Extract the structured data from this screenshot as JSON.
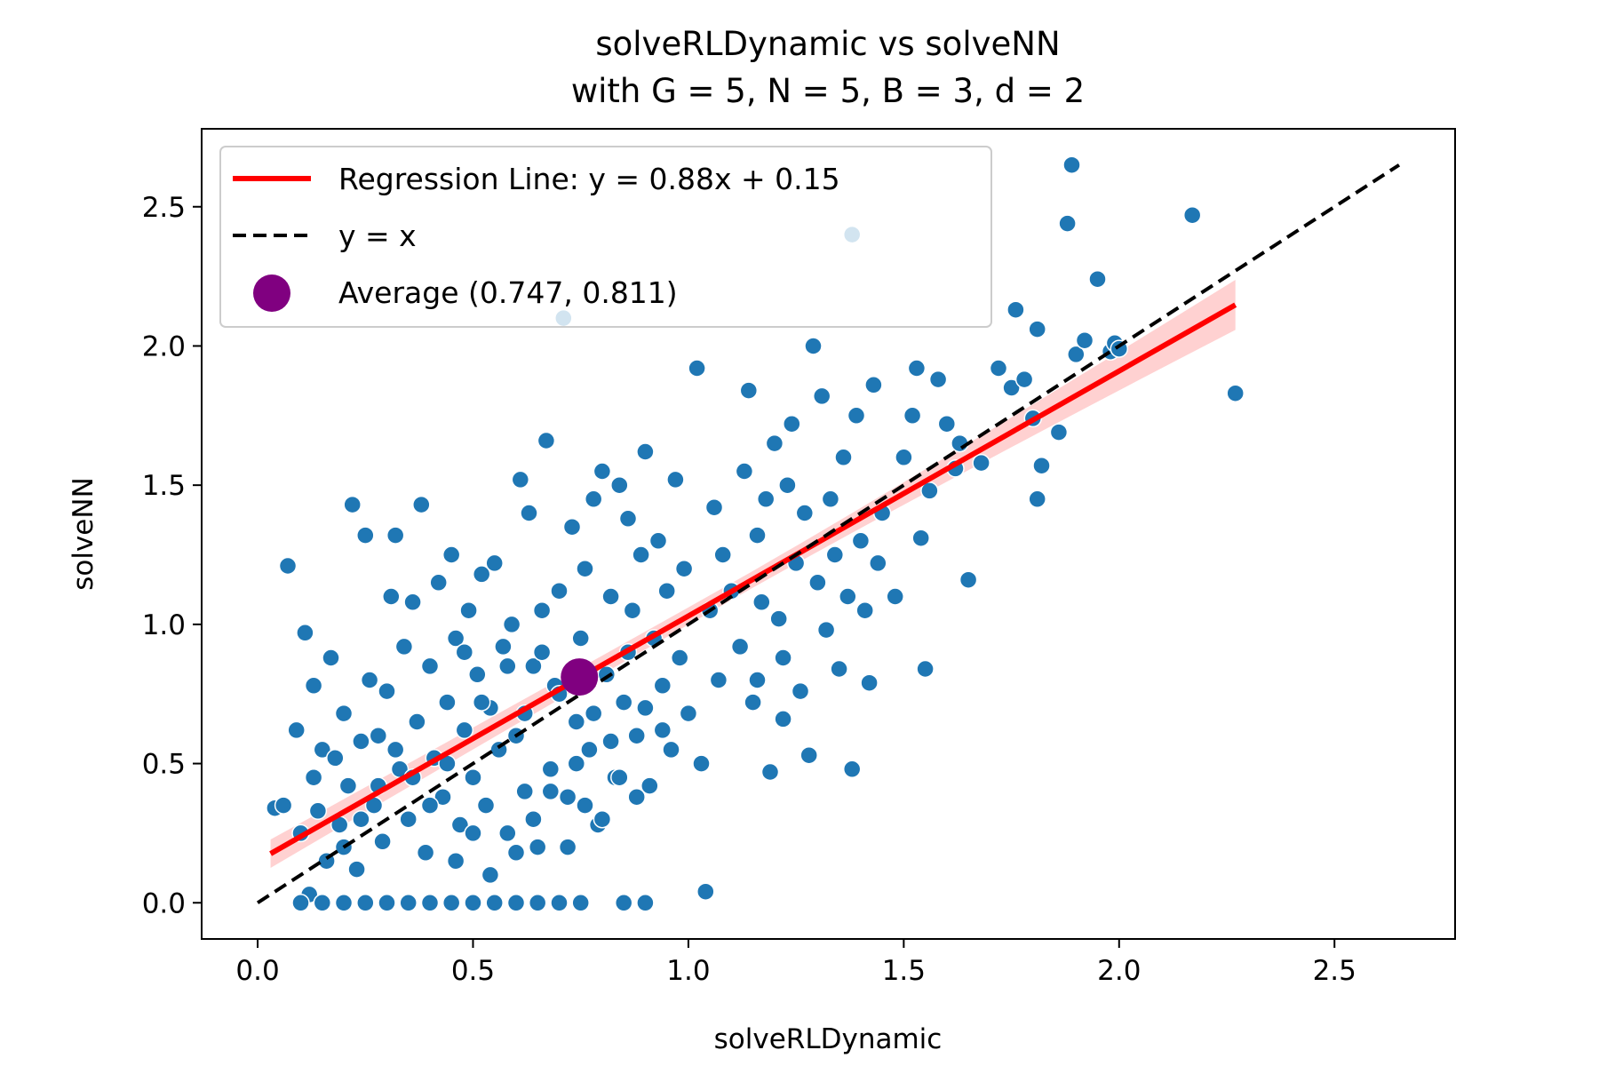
{
  "chart_data": {
    "type": "scatter",
    "title": "solveRLDynamic vs solveNN",
    "subtitle": "with G = 5, N = 5, B = 3, d = 2",
    "xlabel": "solveRLDynamic",
    "ylabel": "solveNN",
    "xlim": [
      -0.13,
      2.78
    ],
    "ylim": [
      -0.13,
      2.78
    ],
    "xticks": [
      0.0,
      0.5,
      1.0,
      1.5,
      2.0,
      2.5
    ],
    "yticks": [
      0.0,
      0.5,
      1.0,
      1.5,
      2.0,
      2.5
    ],
    "x_tick_labels": [
      "0.0",
      "0.5",
      "1.0",
      "1.5",
      "2.0",
      "2.5"
    ],
    "y_tick_labels": [
      "0.0",
      "0.5",
      "1.0",
      "1.5",
      "2.0",
      "2.5"
    ],
    "grid": false,
    "legend_position": "top-left",
    "legend": [
      {
        "label": "Regression Line: y = 0.88x + 0.15",
        "kind": "line",
        "color": "#ff0000"
      },
      {
        "label": "y = x",
        "kind": "dashed",
        "color": "#000000"
      },
      {
        "label": "Average (0.747, 0.811)",
        "kind": "marker",
        "color": "#800080"
      }
    ],
    "regression": {
      "slope": 0.88,
      "intercept": 0.15,
      "x_range": [
        0.03,
        2.27
      ],
      "ci_halfwidth": [
        0.03,
        0.09
      ],
      "color": "#ff0000"
    },
    "identity_line": {
      "x_range": [
        0.0,
        2.65
      ],
      "color": "#000000"
    },
    "average": {
      "x": 0.747,
      "y": 0.811,
      "color": "#800080"
    },
    "scatter_color": "#1f77b4",
    "points": [
      [
        0.04,
        0.34
      ],
      [
        0.06,
        0.35
      ],
      [
        0.07,
        1.21
      ],
      [
        0.09,
        0.62
      ],
      [
        0.1,
        0.25
      ],
      [
        0.11,
        0.97
      ],
      [
        0.12,
        0.03
      ],
      [
        0.13,
        0.78
      ],
      [
        0.13,
        0.45
      ],
      [
        0.14,
        0.33
      ],
      [
        0.15,
        0.55
      ],
      [
        0.16,
        0.15
      ],
      [
        0.17,
        0.88
      ],
      [
        0.18,
        0.52
      ],
      [
        0.19,
        0.28
      ],
      [
        0.2,
        0.68
      ],
      [
        0.21,
        0.42
      ],
      [
        0.22,
        1.43
      ],
      [
        0.23,
        0.12
      ],
      [
        0.24,
        0.58
      ],
      [
        0.25,
        1.32
      ],
      [
        0.26,
        0.8
      ],
      [
        0.27,
        0.35
      ],
      [
        0.28,
        0.6
      ],
      [
        0.29,
        0.22
      ],
      [
        0.3,
        0.76
      ],
      [
        0.31,
        1.1
      ],
      [
        0.32,
        1.32
      ],
      [
        0.33,
        0.48
      ],
      [
        0.34,
        0.92
      ],
      [
        0.35,
        0.3
      ],
      [
        0.36,
        1.08
      ],
      [
        0.37,
        0.65
      ],
      [
        0.38,
        1.43
      ],
      [
        0.39,
        0.18
      ],
      [
        0.4,
        0.85
      ],
      [
        0.41,
        0.52
      ],
      [
        0.42,
        1.15
      ],
      [
        0.43,
        0.38
      ],
      [
        0.44,
        0.72
      ],
      [
        0.45,
        1.25
      ],
      [
        0.46,
        0.95
      ],
      [
        0.47,
        0.28
      ],
      [
        0.48,
        0.62
      ],
      [
        0.49,
        1.05
      ],
      [
        0.5,
        0.45
      ],
      [
        0.51,
        0.82
      ],
      [
        0.52,
        1.18
      ],
      [
        0.53,
        0.35
      ],
      [
        0.54,
        0.7
      ],
      [
        0.55,
        1.22
      ],
      [
        0.56,
        0.55
      ],
      [
        0.57,
        0.92
      ],
      [
        0.58,
        0.25
      ],
      [
        0.59,
        1.0
      ],
      [
        0.6,
        0.6
      ],
      [
        0.61,
        1.52
      ],
      [
        0.62,
        0.4
      ],
      [
        0.63,
        1.4
      ],
      [
        0.64,
        0.85
      ],
      [
        0.65,
        0.2
      ],
      [
        0.66,
        1.05
      ],
      [
        0.67,
        1.66
      ],
      [
        0.68,
        0.48
      ],
      [
        0.69,
        0.78
      ],
      [
        0.7,
        1.12
      ],
      [
        0.71,
        2.1
      ],
      [
        0.72,
        0.38
      ],
      [
        0.73,
        1.35
      ],
      [
        0.74,
        0.65
      ],
      [
        0.75,
        0.95
      ],
      [
        0.76,
        1.2
      ],
      [
        0.77,
        0.55
      ],
      [
        0.78,
        1.45
      ],
      [
        0.79,
        0.28
      ],
      [
        0.8,
        1.55
      ],
      [
        0.81,
        0.82
      ],
      [
        0.82,
        1.1
      ],
      [
        0.83,
        0.45
      ],
      [
        0.84,
        1.5
      ],
      [
        0.85,
        0.72
      ],
      [
        0.86,
        1.38
      ],
      [
        0.87,
        1.05
      ],
      [
        0.88,
        0.6
      ],
      [
        0.89,
        1.25
      ],
      [
        0.9,
        1.62
      ],
      [
        0.91,
        0.42
      ],
      [
        0.92,
        0.95
      ],
      [
        0.93,
        1.3
      ],
      [
        0.94,
        0.78
      ],
      [
        0.95,
        1.12
      ],
      [
        0.96,
        0.55
      ],
      [
        0.97,
        1.52
      ],
      [
        0.98,
        0.88
      ],
      [
        0.99,
        1.2
      ],
      [
        1.0,
        0.68
      ],
      [
        1.02,
        1.92
      ],
      [
        1.03,
        0.5
      ],
      [
        1.04,
        0.04
      ],
      [
        1.05,
        1.05
      ],
      [
        1.06,
        1.42
      ],
      [
        1.07,
        0.8
      ],
      [
        1.08,
        1.25
      ],
      [
        1.1,
        1.12
      ],
      [
        1.12,
        0.92
      ],
      [
        1.13,
        1.55
      ],
      [
        1.14,
        1.84
      ],
      [
        1.15,
        0.72
      ],
      [
        1.16,
        1.32
      ],
      [
        1.17,
        1.08
      ],
      [
        1.18,
        1.45
      ],
      [
        1.19,
        0.47
      ],
      [
        1.2,
        1.65
      ],
      [
        1.21,
        1.02
      ],
      [
        1.22,
        0.88
      ],
      [
        1.23,
        1.5
      ],
      [
        1.24,
        1.72
      ],
      [
        1.25,
        1.22
      ],
      [
        1.26,
        0.76
      ],
      [
        1.27,
        1.4
      ],
      [
        1.28,
        0.53
      ],
      [
        1.29,
        2.0
      ],
      [
        1.3,
        1.15
      ],
      [
        1.31,
        1.82
      ],
      [
        1.32,
        0.98
      ],
      [
        1.33,
        1.45
      ],
      [
        1.34,
        1.25
      ],
      [
        1.35,
        0.84
      ],
      [
        1.36,
        1.6
      ],
      [
        1.37,
        1.1
      ],
      [
        1.38,
        0.48
      ],
      [
        1.39,
        1.75
      ],
      [
        1.4,
        1.3
      ],
      [
        1.41,
        1.05
      ],
      [
        1.42,
        0.79
      ],
      [
        1.43,
        1.86
      ],
      [
        1.44,
        1.22
      ],
      [
        1.45,
        1.4
      ],
      [
        1.48,
        1.1
      ],
      [
        1.5,
        1.6
      ],
      [
        1.52,
        1.75
      ],
      [
        1.53,
        1.92
      ],
      [
        1.54,
        1.31
      ],
      [
        1.55,
        0.84
      ],
      [
        1.56,
        1.48
      ],
      [
        1.58,
        1.88
      ],
      [
        1.6,
        1.72
      ],
      [
        1.62,
        1.56
      ],
      [
        1.63,
        1.65
      ],
      [
        1.65,
        1.16
      ],
      [
        1.68,
        1.58
      ],
      [
        1.72,
        1.92
      ],
      [
        1.75,
        1.85
      ],
      [
        1.76,
        2.13
      ],
      [
        1.78,
        1.88
      ],
      [
        1.8,
        1.74
      ],
      [
        1.81,
        2.06
      ],
      [
        1.81,
        1.45
      ],
      [
        1.82,
        1.57
      ],
      [
        1.86,
        1.69
      ],
      [
        1.88,
        2.44
      ],
      [
        1.89,
        2.65
      ],
      [
        1.9,
        1.97
      ],
      [
        1.92,
        2.02
      ],
      [
        1.95,
        2.24
      ],
      [
        1.98,
        1.98
      ],
      [
        1.99,
        2.01
      ],
      [
        2.0,
        1.99
      ],
      [
        2.17,
        2.47
      ],
      [
        2.27,
        1.83
      ],
      [
        1.38,
        2.4
      ],
      [
        0.25,
        0.0
      ],
      [
        0.3,
        0.0
      ],
      [
        0.35,
        0.0
      ],
      [
        0.4,
        0.0
      ],
      [
        0.45,
        0.0
      ],
      [
        0.5,
        0.0
      ],
      [
        0.55,
        0.0
      ],
      [
        0.6,
        0.0
      ],
      [
        0.65,
        0.0
      ],
      [
        0.7,
        0.0
      ],
      [
        0.75,
        0.0
      ],
      [
        0.85,
        0.0
      ],
      [
        0.9,
        0.0
      ],
      [
        0.1,
        0.0
      ],
      [
        0.15,
        0.0
      ],
      [
        0.2,
        0.0
      ],
      [
        0.56,
        0.55
      ],
      [
        0.48,
        0.9
      ],
      [
        0.52,
        0.72
      ],
      [
        0.58,
        0.85
      ],
      [
        0.62,
        0.68
      ],
      [
        0.66,
        0.9
      ],
      [
        0.7,
        0.75
      ],
      [
        0.74,
        0.5
      ],
      [
        0.78,
        0.68
      ],
      [
        0.82,
        0.58
      ],
      [
        0.86,
        0.9
      ],
      [
        0.9,
        0.7
      ],
      [
        0.94,
        0.62
      ],
      [
        0.44,
        0.5
      ],
      [
        0.4,
        0.35
      ],
      [
        0.36,
        0.45
      ],
      [
        0.32,
        0.55
      ],
      [
        0.28,
        0.42
      ],
      [
        0.24,
        0.3
      ],
      [
        0.2,
        0.2
      ],
      [
        0.46,
        0.15
      ],
      [
        0.5,
        0.25
      ],
      [
        0.54,
        0.1
      ],
      [
        0.6,
        0.18
      ],
      [
        0.64,
        0.3
      ],
      [
        0.68,
        0.4
      ],
      [
        0.72,
        0.2
      ],
      [
        0.76,
        0.35
      ],
      [
        0.8,
        0.3
      ],
      [
        0.84,
        0.45
      ],
      [
        0.88,
        0.38
      ],
      [
        1.16,
        0.8
      ],
      [
        1.22,
        0.66
      ]
    ]
  }
}
